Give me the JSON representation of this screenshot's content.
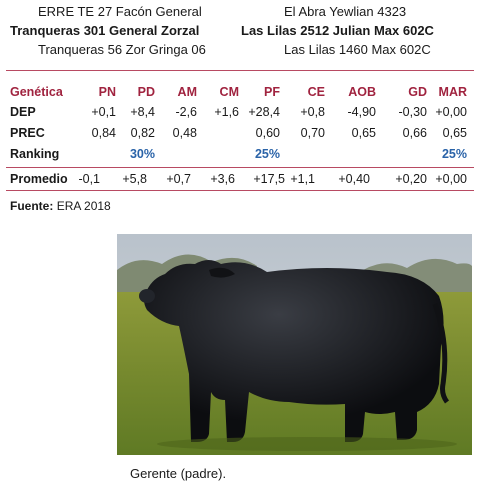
{
  "pedigree": {
    "left": [
      "ERRE TE 27 Facón General",
      "Tranqueras 301 General Zorzal",
      "Tranqueras 56 Zor Gringa 06"
    ],
    "right": [
      "El Abra Yewlian 4323",
      "Las Lilas 2512 Julian Max 602C",
      "Las Lilas 1460 Max 602C"
    ]
  },
  "table": {
    "header_label": "Genética",
    "columns": [
      "PN",
      "PD",
      "AM",
      "CM",
      "PF",
      "CE",
      "AOB",
      "GD",
      "MAR"
    ],
    "rows": {
      "dep": {
        "label": "DEP",
        "values": [
          "+0,1",
          "+8,4",
          "-2,6",
          "+1,6",
          "+28,4",
          "+0,8",
          "-4,90",
          "-0,30",
          "+0,00"
        ]
      },
      "prec": {
        "label": "PREC",
        "values": [
          "0,84",
          "0,82",
          "0,48",
          "",
          "0,60",
          "0,70",
          "0,65",
          "0,66",
          "0,65"
        ]
      },
      "ranking": {
        "label": "Ranking",
        "values": [
          "",
          "30%",
          "",
          "",
          "25%",
          "",
          "",
          "",
          "25%"
        ]
      },
      "promedio": {
        "label": "Promedio",
        "values": [
          "-0,1",
          "+5,8",
          "+0,7",
          "+3,6",
          "+17,5",
          "+1,1",
          "+0,40",
          "+0,20",
          "+0,00"
        ]
      }
    }
  },
  "source": {
    "label": "Fuente:",
    "value": "ERA 2018"
  },
  "photo": {
    "caption": "Gerente (padre)."
  },
  "colors": {
    "accent": "#a0233f",
    "ranking": "#2a63a8",
    "rule": "#b84a62"
  }
}
